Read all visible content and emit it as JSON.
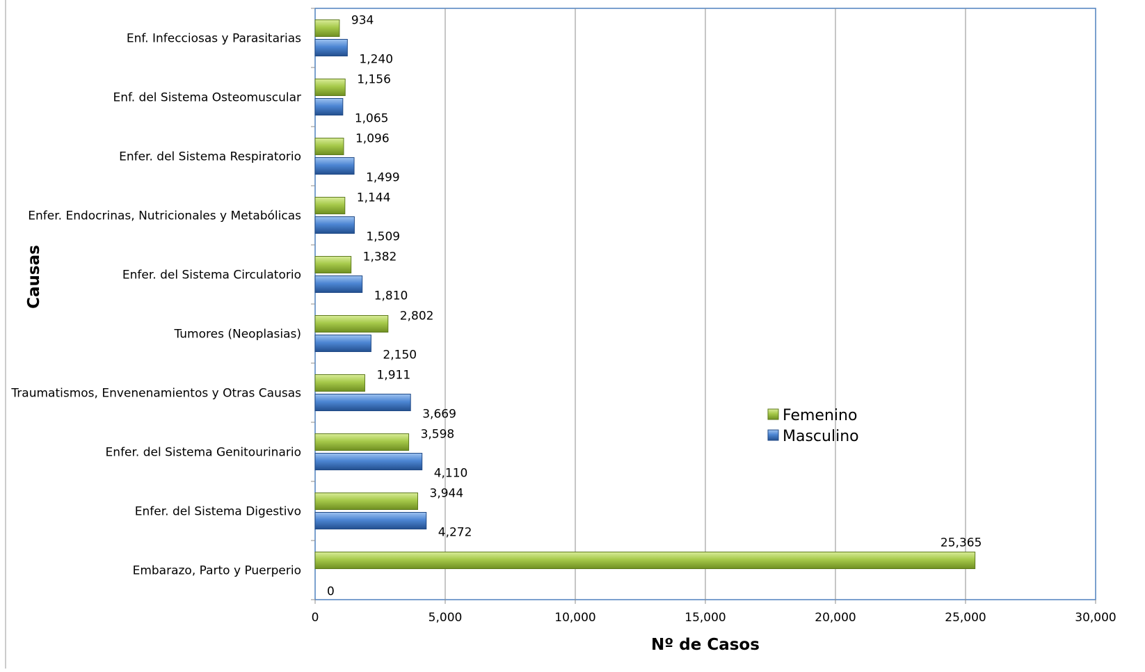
{
  "chart_data": {
    "type": "bar",
    "orientation": "horizontal",
    "title": "",
    "xlabel": "Nº de Casos",
    "ylabel": "Causas",
    "xlim": [
      0,
      30000
    ],
    "x_ticks": [
      "0",
      "5,000",
      "10,000",
      "15,000",
      "20,000",
      "25,000",
      "30,000"
    ],
    "grid": "vertical",
    "legend_position": "right-center",
    "categories": [
      "Enf. Infecciosas y Parasitarias",
      "Enf.  del Sistema Osteomuscular",
      "Enfer. del Sistema Respiratorio",
      "Enfer. Endocrinas, Nutricionales y Metabólicas",
      "Enfer. del Sistema Circulatorio",
      "Tumores (Neoplasias)",
      "Traumatismos, Envenenamientos y Otras Causas",
      "Enfer. del Sistema Genitourinario",
      "Enfer. del Sistema Digestivo",
      "Embarazo, Parto y Puerperio"
    ],
    "series": [
      {
        "name": "Femenino",
        "color": "#9BBB3A",
        "values": [
          934,
          1156,
          1096,
          1144,
          1382,
          2802,
          1911,
          3598,
          3944,
          25365
        ],
        "labels": [
          "934",
          "1,156",
          "1,096",
          "1,144",
          "1,382",
          "2,802",
          "1,911",
          "3,598",
          "3,944",
          "25,365"
        ]
      },
      {
        "name": "Masculino",
        "color": "#3F78C8",
        "values": [
          1240,
          1065,
          1499,
          1509,
          1810,
          2150,
          3669,
          4110,
          4272,
          0
        ],
        "labels": [
          "1,240",
          "1,065",
          "1,499",
          "1,509",
          "1,810",
          "2,150",
          "3,669",
          "4,110",
          "4,272",
          "0"
        ]
      }
    ]
  }
}
